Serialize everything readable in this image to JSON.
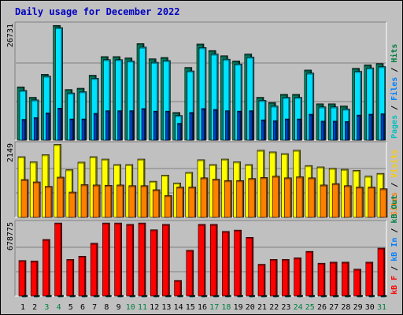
{
  "title": "Daily usage for December 2022",
  "legend": {
    "panel1": [
      {
        "text": "Pages",
        "color": "#00c0c0"
      },
      {
        "text": " / ",
        "color": "#000000"
      },
      {
        "text": "Files",
        "color": "#0080ff"
      },
      {
        "text": " / ",
        "color": "#000000"
      },
      {
        "text": "Hits",
        "color": "#008040"
      }
    ],
    "panel2": [
      {
        "text": "Sites",
        "color": "#ff8000"
      },
      {
        "text": " / ",
        "color": "#000000"
      },
      {
        "text": "Visits",
        "color": "#ffcc00"
      }
    ],
    "panel3": [
      {
        "text": "kB F",
        "color": "#ff0000"
      },
      {
        "text": " / ",
        "color": "#000000"
      },
      {
        "text": "kB In",
        "color": "#0080ff"
      },
      {
        "text": " / ",
        "color": "#000000"
      },
      {
        "text": "kB Out",
        "color": "#008040"
      }
    ]
  },
  "colors": {
    "hits": "#008060",
    "files": "#00e0ff",
    "pages": "#0040c0",
    "visits": "#ffff00",
    "sites": "#ff8000",
    "kbf": "#ff0000",
    "kbin": "#0080ff",
    "kbout": "#008040",
    "weekday_label": "#000000",
    "weekend_label": "#008040"
  },
  "chart_data": [
    {
      "type": "bar",
      "name_panel": "hits-files-pages",
      "y_tick_label": "26731",
      "ylim": [
        0,
        26731
      ],
      "categories": [
        "1",
        "2",
        "3",
        "4",
        "5",
        "6",
        "7",
        "8",
        "9",
        "10",
        "11",
        "12",
        "13",
        "14",
        "15",
        "16",
        "17",
        "18",
        "19",
        "20",
        "21",
        "22",
        "23",
        "24",
        "25",
        "26",
        "27",
        "28",
        "29",
        "30",
        "31"
      ],
      "weekend_days": [
        "3",
        "4",
        "10",
        "11",
        "17",
        "18",
        "24",
        "25",
        "31"
      ],
      "series": [
        {
          "name": "Hits",
          "values": [
            12300,
            9900,
            15200,
            26500,
            11700,
            12000,
            15000,
            19300,
            19300,
            19000,
            22300,
            18800,
            19100,
            6400,
            16800,
            22200,
            20700,
            19500,
            18300,
            19900,
            9900,
            8700,
            10600,
            10600,
            16200,
            8400,
            8400,
            7900,
            16600,
            17400,
            17700
          ]
        },
        {
          "name": "Files",
          "values": [
            11500,
            9300,
            14800,
            26000,
            10900,
            11200,
            14300,
            18600,
            18600,
            18300,
            21500,
            18000,
            18400,
            5700,
            16000,
            21400,
            19900,
            18700,
            17600,
            19200,
            9200,
            7900,
            9900,
            9900,
            15500,
            7700,
            7700,
            7200,
            15900,
            16700,
            17000
          ]
        },
        {
          "name": "Pages",
          "values": [
            4800,
            5200,
            6300,
            7400,
            4900,
            4900,
            6200,
            6800,
            6800,
            6800,
            7300,
            6700,
            6700,
            3900,
            6400,
            7300,
            7100,
            6800,
            6700,
            6800,
            4700,
            4500,
            4900,
            4900,
            6000,
            4400,
            4400,
            4300,
            5800,
            6000,
            6100
          ]
        }
      ]
    },
    {
      "type": "bar",
      "name_panel": "visits-sites",
      "y_tick_label": "2149",
      "ylim": [
        0,
        2149
      ],
      "categories": [
        "1",
        "2",
        "3",
        "4",
        "5",
        "6",
        "7",
        "8",
        "9",
        "10",
        "11",
        "12",
        "13",
        "14",
        "15",
        "16",
        "17",
        "18",
        "19",
        "20",
        "21",
        "22",
        "23",
        "24",
        "25",
        "26",
        "27",
        "28",
        "29",
        "30",
        "31"
      ],
      "series": [
        {
          "name": "Visits",
          "values": [
            1780,
            1630,
            1840,
            2140,
            1400,
            1620,
            1780,
            1710,
            1550,
            1550,
            1710,
            1060,
            1240,
            1010,
            1320,
            1690,
            1550,
            1710,
            1630,
            1550,
            1970,
            1920,
            1870,
            1970,
            1520,
            1480,
            1440,
            1410,
            1380,
            1210,
            1290
          ]
        },
        {
          "name": "Sites",
          "values": [
            1110,
            1040,
            910,
            1180,
            740,
            960,
            950,
            940,
            950,
            930,
            930,
            810,
            640,
            890,
            890,
            1160,
            1120,
            1080,
            1080,
            1140,
            1170,
            1210,
            1160,
            1190,
            1160,
            950,
            990,
            930,
            890,
            890,
            840
          ]
        }
      ]
    },
    {
      "type": "bar",
      "name_panel": "kbf-kbin-kbout",
      "y_tick_label": "678775",
      "ylim": [
        0,
        678775
      ],
      "categories": [
        "1",
        "2",
        "3",
        "4",
        "5",
        "6",
        "7",
        "8",
        "9",
        "10",
        "11",
        "12",
        "13",
        "14",
        "15",
        "16",
        "17",
        "18",
        "19",
        "20",
        "21",
        "22",
        "23",
        "24",
        "25",
        "26",
        "27",
        "28",
        "29",
        "30",
        "31"
      ],
      "series": [
        {
          "name": "kB F",
          "values": [
            330000,
            325000,
            525000,
            678000,
            340000,
            370000,
            490000,
            678000,
            678000,
            665000,
            678000,
            615000,
            665000,
            145000,
            425000,
            665000,
            665000,
            600000,
            612000,
            545000,
            295000,
            340000,
            340000,
            355000,
            415000,
            305000,
            315000,
            315000,
            250000,
            315000,
            445000
          ]
        },
        {
          "name": "kB In",
          "values": [
            4000,
            4000,
            4000,
            4000,
            4000,
            4000,
            4000,
            4000,
            4000,
            4000,
            4000,
            4000,
            4000,
            4000,
            4000,
            4000,
            4000,
            4000,
            4000,
            4000,
            4000,
            4000,
            4000,
            4000,
            4000,
            4000,
            4000,
            4000,
            4000,
            4000,
            4000
          ]
        },
        {
          "name": "kB Out",
          "values": [
            6000,
            6000,
            6000,
            6000,
            6000,
            6000,
            6000,
            6000,
            6000,
            6000,
            6000,
            6000,
            6000,
            6000,
            6000,
            6000,
            6000,
            6000,
            6000,
            6000,
            6000,
            6000,
            6000,
            6000,
            6000,
            6000,
            6000,
            6000,
            6000,
            6000,
            6000
          ]
        }
      ]
    }
  ]
}
